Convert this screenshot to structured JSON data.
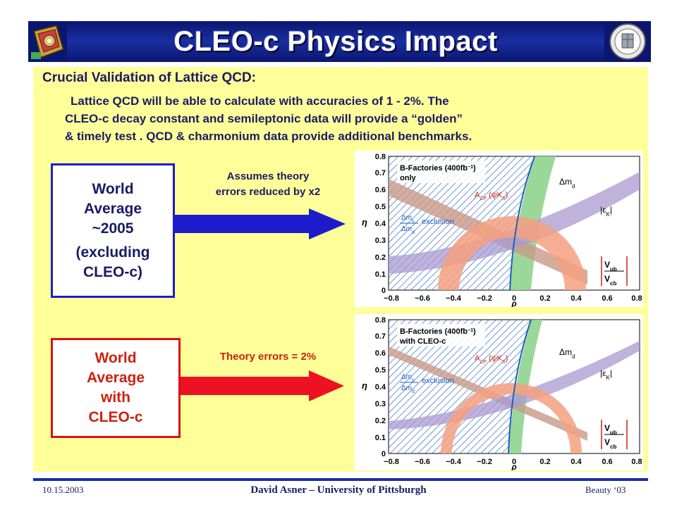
{
  "slide": {
    "title": "CLEO-c Physics Impact",
    "heading": "Crucial Validation of Lattice QCD:",
    "body_line1": "Lattice QCD will be able to calculate with accuracies of 1 - 2%. The",
    "body_line2": "CLEO-c decay constant and semileptonic data will provide a “golden”",
    "body_line3": "& timely test . QCD & charmonium data provide additional benchmarks."
  },
  "box_world_2005": {
    "line1": "World",
    "line2": "Average",
    "line3": "~2005",
    "line4": "(excluding",
    "line5": "CLEO-c)"
  },
  "box_world_cleoc": {
    "line1": "World",
    "line2": "Average",
    "line3": "with",
    "line4": "CLEO-c"
  },
  "note_blue": {
    "line1": "Assumes theory",
    "line2": "errors reduced by x2"
  },
  "note_red": "Theory errors = 2%",
  "plots": {
    "top": {
      "legend_line1": "B-Factories (400fb",
      "legend_sup": "−1",
      "legend_close": ")",
      "legend_line2": "only"
    },
    "bottom": {
      "legend_line1": "B-Factories (400fb",
      "legend_sup": "−1",
      "legend_close": ")",
      "legend_line2": "with CLEO-c"
    },
    "labels": {
      "acp": "A",
      "acp_sub": "CP",
      "acp_arg": " (ψK",
      "acp_arg_sub": "S",
      "acp_close": ")",
      "dmd": "Δm",
      "dmd_sub": "d",
      "epsk": "|ε",
      "epsk_sub": "K",
      "epsk_close": "|",
      "dms": "Δm",
      "dms_sub": "s",
      "dmd2": "Δm",
      "dmd2_sub": "d",
      "exclusion": "exclusion",
      "vub": "V",
      "vub_sub": "ub",
      "vcb": "V",
      "vcb_sub": "cb",
      "rho": "ρ",
      "eta": "η"
    },
    "y_ticks": [
      "0.8",
      "0.7",
      "0.6",
      "0.5",
      "0.4",
      "0.3",
      "0.2",
      "0.1",
      "0"
    ],
    "x_ticks": [
      "−0.8",
      "−0.6",
      "−0.4",
      "−0.2",
      "0",
      "0.2",
      "0.4",
      "0.6",
      "0.8"
    ]
  },
  "footer": {
    "date": "10.15.2003",
    "author": "David Asner – University of Pittsburgh",
    "conference": "Beauty ‘03"
  },
  "colors": {
    "title_bg": "#0a1670",
    "panel": "#ffff99",
    "blue_arrow": "#1c1ccc",
    "red_arrow": "#ee1122",
    "hatch": "#1f5fbf",
    "green_band": "#8fd48f",
    "purple_band": "#a99ad0",
    "brown_band": "#c89a88",
    "orange_ring": "#f4a080"
  }
}
